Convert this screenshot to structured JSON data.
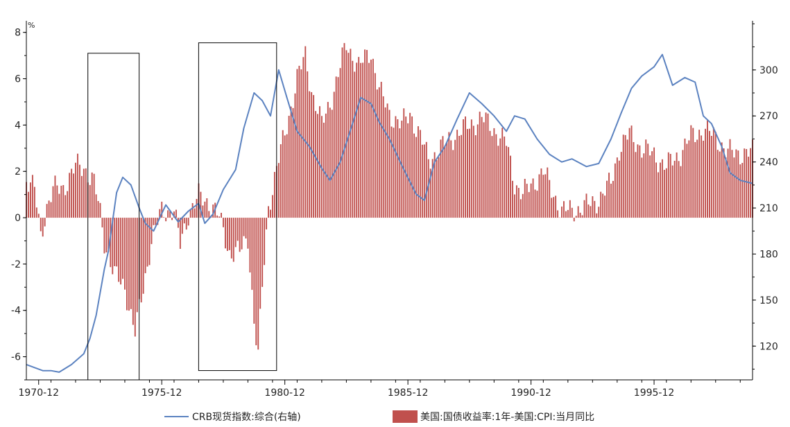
{
  "chart_data": {
    "type": "bar+line",
    "unit_left": "%",
    "x_ticks": [
      "1970-12",
      "1975-12",
      "1980-12",
      "1985-12",
      "1990-12",
      "1995-12"
    ],
    "x_range": [
      "1970-06",
      "1999-12"
    ],
    "y_left": {
      "range": [
        -7,
        8.5
      ],
      "ticks": [
        "-6",
        "-4",
        "-2",
        "0",
        "2",
        "4",
        "6",
        "8"
      ]
    },
    "y_right": {
      "range": [
        98,
        332
      ],
      "ticks": [
        "120",
        "150",
        "180",
        "210",
        "240",
        "270",
        "300"
      ]
    },
    "legend": {
      "line_label": "CRB现货指数:综合(右轴)",
      "bar_label": "美国:国债收益率:1年-美国:CPI:当月同比"
    },
    "colors": {
      "line": "#5b82c0",
      "bar": "#c0504d",
      "axis": "#000000"
    },
    "bar_series": {
      "name": "美国:国债收益率:1年-美国:CPI:当月同比",
      "knots": [
        [
          "1970-06",
          1.7
        ],
        [
          "1970-10",
          1.2
        ],
        [
          "1971-01",
          -0.8
        ],
        [
          "1971-04",
          0.5
        ],
        [
          "1971-07",
          1.2
        ],
        [
          "1971-12",
          1.3
        ],
        [
          "1972-06",
          2.2
        ],
        [
          "1972-10",
          2.2
        ],
        [
          "1973-03",
          1.5
        ],
        [
          "1973-06",
          0.2
        ],
        [
          "1973-08",
          -1.0
        ],
        [
          "1974-01",
          -2.5
        ],
        [
          "1974-06",
          -3.0
        ],
        [
          "1974-11",
          -5.0
        ],
        [
          "1975-03",
          -3.0
        ],
        [
          "1975-07",
          -1.0
        ],
        [
          "1975-12",
          0.3
        ],
        [
          "1976-06",
          0.3
        ],
        [
          "1976-09",
          -1.2
        ],
        [
          "1977-01",
          0.2
        ],
        [
          "1977-06",
          0.9
        ],
        [
          "1977-12",
          0.6
        ],
        [
          "1978-04",
          0.0
        ],
        [
          "1978-09",
          -1.5
        ],
        [
          "1979-02",
          -1.5
        ],
        [
          "1979-06",
          -0.8
        ],
        [
          "1979-09",
          -4.5
        ],
        [
          "1979-11",
          -6.0
        ],
        [
          "1980-01",
          -3.0
        ],
        [
          "1980-04",
          0.5
        ],
        [
          "1980-09",
          2.5
        ],
        [
          "1981-01",
          4.0
        ],
        [
          "1981-06",
          6.0
        ],
        [
          "1981-10",
          7.0
        ],
        [
          "1982-01",
          5.5
        ],
        [
          "1982-06",
          4.0
        ],
        [
          "1982-12",
          5.5
        ],
        [
          "1983-06",
          7.5
        ],
        [
          "1983-12",
          6.5
        ],
        [
          "1984-06",
          7.2
        ],
        [
          "1984-10",
          5.5
        ],
        [
          "1985-03",
          4.5
        ],
        [
          "1985-09",
          4.0
        ],
        [
          "1986-01",
          4.5
        ],
        [
          "1986-06",
          3.5
        ],
        [
          "1986-10",
          2.5
        ],
        [
          "1987-04",
          3.0
        ],
        [
          "1987-10",
          3.5
        ],
        [
          "1988-06",
          4.0
        ],
        [
          "1988-12",
          4.3
        ],
        [
          "1989-06",
          3.8
        ],
        [
          "1989-12",
          3.2
        ],
        [
          "1990-04",
          1.5
        ],
        [
          "1990-08",
          1.0
        ],
        [
          "1991-01",
          1.5
        ],
        [
          "1991-06",
          2.0
        ],
        [
          "1991-10",
          1.2
        ],
        [
          "1992-03",
          0.3
        ],
        [
          "1992-08",
          0.3
        ],
        [
          "1993-03",
          0.5
        ],
        [
          "1993-09",
          0.8
        ],
        [
          "1994-03",
          1.5
        ],
        [
          "1994-07",
          3.0
        ],
        [
          "1994-12",
          3.6
        ],
        [
          "1995-06",
          3.0
        ],
        [
          "1995-12",
          2.7
        ],
        [
          "1996-06",
          2.2
        ],
        [
          "1997-01",
          2.8
        ],
        [
          "1997-06",
          3.5
        ],
        [
          "1997-12",
          3.8
        ],
        [
          "1998-06",
          3.5
        ],
        [
          "1998-12",
          2.8
        ],
        [
          "1999-06",
          2.8
        ],
        [
          "1999-12",
          2.8
        ]
      ]
    },
    "line_series": {
      "name": "CRB现货指数:综合(右轴)",
      "points": [
        [
          "1970-06",
          108
        ],
        [
          "1970-10",
          106
        ],
        [
          "1971-02",
          104
        ],
        [
          "1971-06",
          104
        ],
        [
          "1971-10",
          103
        ],
        [
          "1972-04",
          108
        ],
        [
          "1972-10",
          115
        ],
        [
          "1973-01",
          125
        ],
        [
          "1973-04",
          140
        ],
        [
          "1973-08",
          170
        ],
        [
          "1973-10",
          182
        ],
        [
          "1974-02",
          220
        ],
        [
          "1974-05",
          230
        ],
        [
          "1974-09",
          225
        ],
        [
          "1975-01",
          210
        ],
        [
          "1975-04",
          200
        ],
        [
          "1975-08",
          195
        ],
        [
          "1976-02",
          212
        ],
        [
          "1976-08",
          201
        ],
        [
          "1977-01",
          208
        ],
        [
          "1977-06",
          213
        ],
        [
          "1977-09",
          200
        ],
        [
          "1978-01",
          206
        ],
        [
          "1978-06",
          222
        ],
        [
          "1978-12",
          235
        ],
        [
          "1979-04",
          262
        ],
        [
          "1979-09",
          285
        ],
        [
          "1980-01",
          280
        ],
        [
          "1980-05",
          270
        ],
        [
          "1980-09",
          300
        ],
        [
          "1981-01",
          282
        ],
        [
          "1981-06",
          260
        ],
        [
          "1981-12",
          250
        ],
        [
          "1982-06",
          236
        ],
        [
          "1982-10",
          228
        ],
        [
          "1983-03",
          240
        ],
        [
          "1983-09",
          265
        ],
        [
          "1984-01",
          282
        ],
        [
          "1984-06",
          278
        ],
        [
          "1984-10",
          266
        ],
        [
          "1985-03",
          255
        ],
        [
          "1985-09",
          238
        ],
        [
          "1986-04",
          219
        ],
        [
          "1986-08",
          215
        ],
        [
          "1987-01",
          240
        ],
        [
          "1987-06",
          250
        ],
        [
          "1987-12",
          268
        ],
        [
          "1988-06",
          285
        ],
        [
          "1988-12",
          278
        ],
        [
          "1989-06",
          270
        ],
        [
          "1989-12",
          260
        ],
        [
          "1990-04",
          270
        ],
        [
          "1990-09",
          268
        ],
        [
          "1991-03",
          255
        ],
        [
          "1991-09",
          245
        ],
        [
          "1992-03",
          240
        ],
        [
          "1992-08",
          242
        ],
        [
          "1993-03",
          237
        ],
        [
          "1993-09",
          239
        ],
        [
          "1994-03",
          255
        ],
        [
          "1994-08",
          272
        ],
        [
          "1995-01",
          288
        ],
        [
          "1995-06",
          296
        ],
        [
          "1995-12",
          302
        ],
        [
          "1996-04",
          310
        ],
        [
          "1996-09",
          290
        ],
        [
          "1997-03",
          295
        ],
        [
          "1997-08",
          292
        ],
        [
          "1997-12",
          270
        ],
        [
          "1998-04",
          265
        ],
        [
          "1998-09",
          250
        ],
        [
          "1999-01",
          233
        ],
        [
          "1999-06",
          228
        ],
        [
          "1999-12",
          226
        ]
      ]
    },
    "annotations": [
      {
        "type": "box",
        "x_range": [
          "1972-12",
          "1975-01"
        ],
        "y_range": [
          -7,
          7.1
        ]
      },
      {
        "type": "box",
        "x_range": [
          "1977-06",
          "1980-08"
        ],
        "y_range": [
          -6.6,
          7.55
        ]
      }
    ]
  }
}
